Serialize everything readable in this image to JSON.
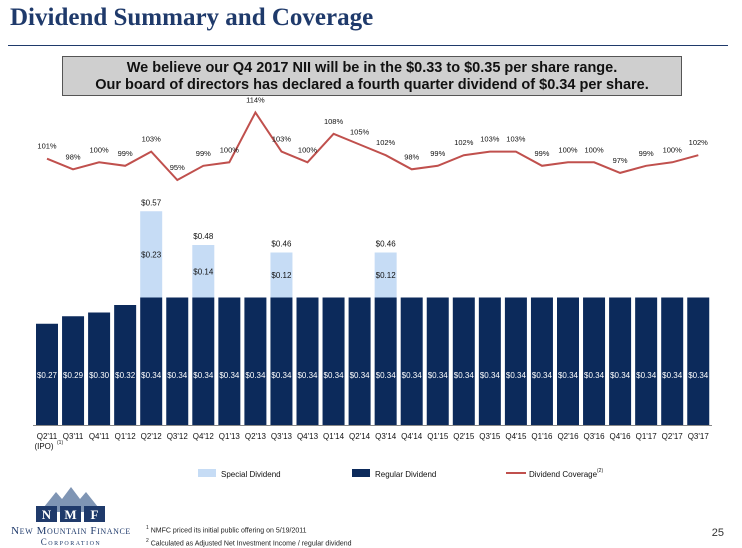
{
  "page": {
    "title": "Dividend Summary and Coverage",
    "banner_line1": "We believe our Q4 2017 NII will be in the $0.33 to $0.35 per share range.",
    "banner_line2": "Our board of directors has declared a fourth quarter dividend of $0.34 per share.",
    "logo_mark": "NMF",
    "logo_name_line1": "New Mountain Finance",
    "logo_name_line2": "Corporation",
    "footnote1": "NMFC priced its initial public offering on 5/19/2011",
    "footnote2": "Calculated as Adjusted Net Investment Income / regular dividend",
    "footnote1_marker": "1",
    "footnote2_marker": "2",
    "page_number": "25"
  },
  "chart_data": {
    "type": "bar",
    "categories": [
      "Q2'11",
      "Q3'11",
      "Q4'11",
      "Q1'12",
      "Q2'12",
      "Q3'12",
      "Q4'12",
      "Q1'13",
      "Q2'13",
      "Q3'13",
      "Q4'13",
      "Q1'14",
      "Q2'14",
      "Q3'14",
      "Q4'14",
      "Q1'15",
      "Q2'15",
      "Q3'15",
      "Q4'15",
      "Q1'16",
      "Q2'16",
      "Q3'16",
      "Q4'16",
      "Q1'17",
      "Q2'17",
      "Q3'17"
    ],
    "first_category_sublabel": "(IPO)",
    "first_category_superscript": "(1)",
    "series": [
      {
        "name": "Regular Dividend",
        "color": "#0c2a5b",
        "values": [
          0.27,
          0.29,
          0.3,
          0.32,
          0.34,
          0.34,
          0.34,
          0.34,
          0.34,
          0.34,
          0.34,
          0.34,
          0.34,
          0.34,
          0.34,
          0.34,
          0.34,
          0.34,
          0.34,
          0.34,
          0.34,
          0.34,
          0.34,
          0.34,
          0.34,
          0.34
        ]
      },
      {
        "name": "Special Dividend",
        "color": "#c6dcf5",
        "values": [
          0,
          0,
          0,
          0,
          0.23,
          0,
          0.14,
          0,
          0,
          0.12,
          0,
          0,
          0,
          0.12,
          0,
          0,
          0,
          0,
          0,
          0,
          0,
          0,
          0,
          0,
          0,
          0
        ]
      },
      {
        "name": "Dividend Coverage",
        "superscript": "(2)",
        "color": "#c0504d",
        "values": [
          101,
          98,
          100,
          99,
          103,
          95,
          99,
          100,
          114,
          103,
          100,
          108,
          105,
          102,
          98,
          99,
          102,
          103,
          103,
          99,
          100,
          100,
          97,
          99,
          100,
          102
        ]
      }
    ],
    "regular_labels": [
      "$0.27",
      "$0.29",
      "$0.30",
      "$0.32",
      "$0.34",
      "$0.34",
      "$0.34",
      "$0.34",
      "$0.34",
      "$0.34",
      "$0.34",
      "$0.34",
      "$0.34",
      "$0.34",
      "$0.34",
      "$0.34",
      "$0.34",
      "$0.34",
      "$0.34",
      "$0.34",
      "$0.34",
      "$0.34",
      "$0.34",
      "$0.34",
      "$0.34",
      "$0.34"
    ],
    "special_labels": [
      "",
      "",
      "",
      "",
      "$0.23",
      "",
      "$0.14",
      "",
      "",
      "$0.12",
      "",
      "",
      "",
      "$0.12",
      "",
      "",
      "",
      "",
      "",
      "",
      "",
      "",
      "",
      "",
      "",
      ""
    ],
    "total_labels": [
      "",
      "",
      "",
      "",
      "$0.57",
      "",
      "$0.48",
      "",
      "",
      "$0.46",
      "",
      "",
      "",
      "$0.46",
      "",
      "",
      "",
      "",
      "",
      "",
      "",
      "",
      "",
      "",
      "",
      ""
    ],
    "coverage_labels": [
      "101%",
      "98%",
      "100%",
      "99%",
      "103%",
      "95%",
      "99%",
      "100%",
      "114%",
      "103%",
      "100%",
      "108%",
      "105%",
      "102%",
      "98%",
      "99%",
      "102%",
      "103%",
      "103%",
      "99%",
      "100%",
      "100%",
      "97%",
      "99%",
      "100%",
      "102%"
    ],
    "legend_position": "bottom",
    "grid": false
  }
}
